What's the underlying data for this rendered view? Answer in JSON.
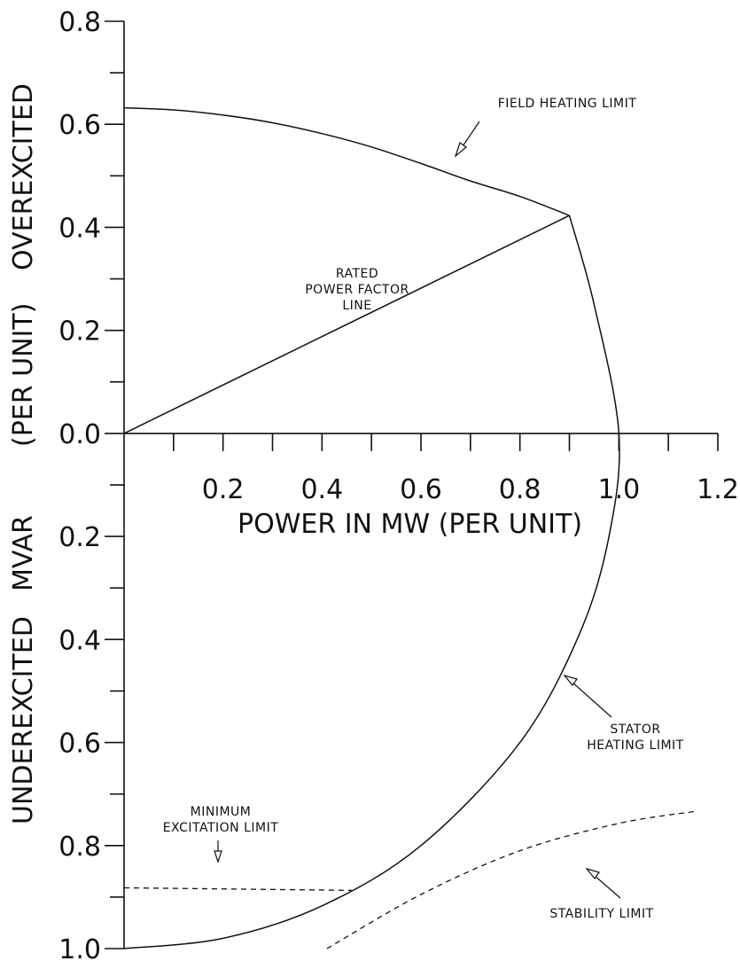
{
  "chart_data": {
    "type": "line",
    "title": "",
    "xlabel": "POWER IN MW  (PER UNIT)",
    "ylabel_parts": [
      "UNDEREXCITED",
      "MVAR",
      "(PER UNIT)",
      "OVEREXCITED"
    ],
    "xlim": [
      0,
      1.2
    ],
    "ylim": [
      -1.0,
      0.8
    ],
    "x_ticks": [
      0.2,
      0.4,
      0.6,
      0.8,
      1.0,
      1.2
    ],
    "x_tick_labels": [
      "0.2",
      "0.4",
      "0.6",
      "0.8",
      "1.0",
      "1.2"
    ],
    "y_ticks": [
      0.8,
      0.6,
      0.4,
      0.2,
      0.0,
      -0.2,
      -0.4,
      -0.6,
      -0.8,
      -1.0
    ],
    "y_tick_labels": [
      "0.8",
      "0.6",
      "0.4",
      "0.2",
      "0.0",
      "0.2",
      "0.4",
      "0.6",
      "0.8",
      "1.0"
    ],
    "grid": false,
    "series": [
      {
        "label": "FIELD HEATING LIMIT",
        "style": "solid",
        "x": [
          0.0,
          0.1,
          0.2,
          0.3,
          0.4,
          0.5,
          0.6,
          0.7,
          0.8,
          0.9
        ],
        "y": [
          0.632,
          0.628,
          0.618,
          0.603,
          0.582,
          0.556,
          0.524,
          0.49,
          0.46,
          0.423
        ]
      },
      {
        "label": "RATED POWER FACTOR LINE",
        "style": "solid",
        "x": [
          0.0,
          0.9
        ],
        "y": [
          0.0,
          0.423
        ]
      },
      {
        "label": "STATOR HEATING LIMIT",
        "style": "solid",
        "x": [
          0.9,
          0.95,
          1.0,
          0.98,
          0.92,
          0.8,
          0.6,
          0.4,
          0.2,
          0.0
        ],
        "y": [
          0.423,
          0.25,
          0.0,
          -0.2,
          -0.39,
          -0.6,
          -0.8,
          -0.917,
          -0.98,
          -1.0
        ]
      },
      {
        "label": "MINIMUM EXCITATION LIMIT",
        "style": "dashed",
        "x": [
          0.0,
          0.46
        ],
        "y": [
          -0.882,
          -0.887
        ]
      },
      {
        "label": "STABILITY LIMIT",
        "style": "dashed",
        "x": [
          0.41,
          0.6,
          0.8,
          1.0,
          1.16
        ],
        "y": [
          -1.0,
          -0.895,
          -0.81,
          -0.757,
          -0.733
        ]
      }
    ],
    "annotations": {
      "field_heating": [
        "FIELD HEATING LIMIT"
      ],
      "rated_pf": [
        "RATED",
        "POWER FACTOR",
        "LINE"
      ],
      "stator_heating": [
        "STATOR",
        "HEATING LIMIT"
      ],
      "min_excitation": [
        "MINIMUM",
        "EXCITATION LIMIT"
      ],
      "stability": [
        "STABILITY LIMIT"
      ]
    }
  }
}
